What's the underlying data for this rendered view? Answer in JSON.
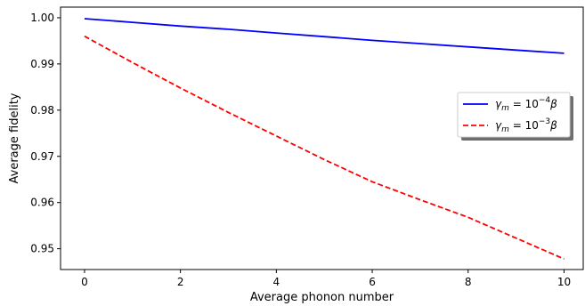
{
  "chart_data": {
    "type": "line",
    "title": "",
    "xlabel": "Average phonon number",
    "ylabel": "Average fidelity",
    "xlim": [
      -0.5,
      10.4
    ],
    "ylim": [
      0.9455,
      1.0023
    ],
    "xticks": [
      0,
      2,
      4,
      6,
      8,
      10
    ],
    "yticks": [
      0.95,
      0.96,
      0.97,
      0.98,
      0.99,
      1.0
    ],
    "xtick_labels": [
      "0",
      "2",
      "4",
      "6",
      "8",
      "10"
    ],
    "ytick_labels": [
      "0.95",
      "0.96",
      "0.97",
      "0.98",
      "0.99",
      "1.00"
    ],
    "grid": false,
    "legend_position": "right",
    "series": [
      {
        "name": "γm = 10^−4 β",
        "color": "#0000ff",
        "style": "solid",
        "x": [
          0,
          1,
          2,
          3,
          4,
          5,
          6,
          7,
          8,
          9,
          10
        ],
        "y": [
          0.9998,
          0.999,
          0.9982,
          0.9975,
          0.9967,
          0.9959,
          0.9951,
          0.9944,
          0.9937,
          0.993,
          0.9923
        ]
      },
      {
        "name": "γm = 10^−3 β",
        "color": "#ff0000",
        "style": "dashed",
        "x": [
          0,
          1,
          2,
          3,
          4,
          5,
          6,
          7,
          8,
          9,
          10
        ],
        "y": [
          0.996,
          0.9903,
          0.9848,
          0.9795,
          0.9744,
          0.9693,
          0.9645,
          0.9606,
          0.9568,
          0.9523,
          0.9478
        ]
      }
    ],
    "legend": [
      {
        "prefix": "γ",
        "sub": "m",
        "mid": " = 10",
        "sup": "−4",
        "suffix": "β"
      },
      {
        "prefix": "γ",
        "sub": "m",
        "mid": " = 10",
        "sup": "−3",
        "suffix": "β"
      }
    ]
  }
}
